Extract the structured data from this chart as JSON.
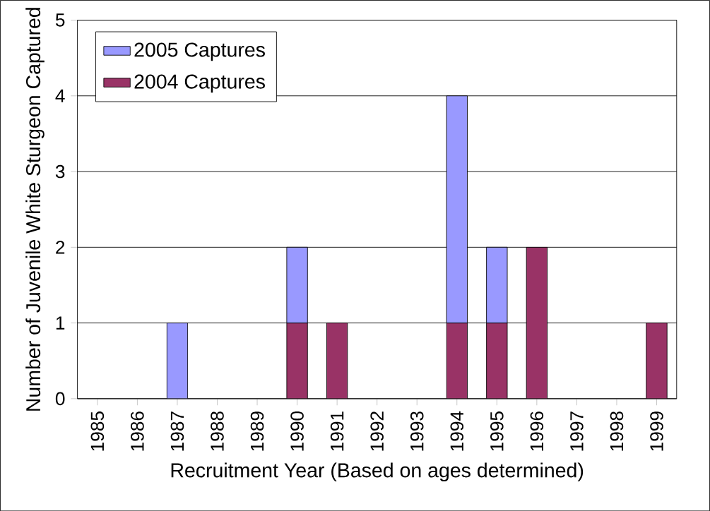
{
  "chart_data": {
    "type": "bar",
    "stacked": true,
    "xlabel": "Recruitment Year (Based on ages determined)",
    "ylabel": "Number of Juvenile White Sturgeon Captured",
    "categories": [
      "1985",
      "1986",
      "1987",
      "1988",
      "1989",
      "1990",
      "1991",
      "1992",
      "1993",
      "1994",
      "1995",
      "1996",
      "1997",
      "1998",
      "1999"
    ],
    "series": [
      {
        "name": "2004 Captures",
        "color": "#993366",
        "values": [
          null,
          null,
          null,
          null,
          null,
          1,
          1,
          null,
          null,
          1,
          1,
          2,
          null,
          null,
          1
        ]
      },
      {
        "name": "2005 Captures",
        "color": "#9999ff",
        "values": [
          null,
          null,
          1,
          null,
          null,
          1,
          null,
          null,
          null,
          3,
          1,
          null,
          null,
          null,
          null
        ]
      }
    ],
    "ylim": [
      0,
      5
    ],
    "yticks": [
      0,
      1,
      2,
      3,
      4,
      5
    ],
    "grid": "y",
    "legend": "top left"
  }
}
